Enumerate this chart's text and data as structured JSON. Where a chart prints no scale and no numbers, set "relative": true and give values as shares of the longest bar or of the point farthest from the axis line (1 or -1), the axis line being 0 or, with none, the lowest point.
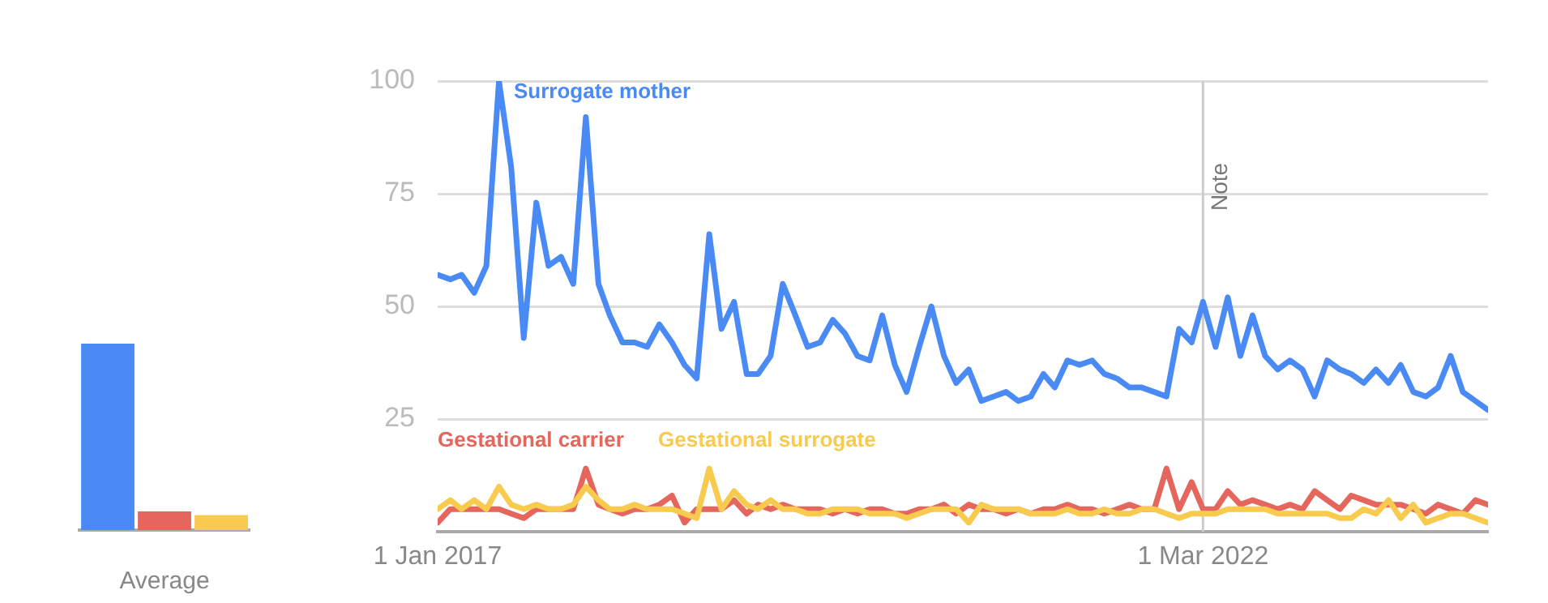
{
  "chart_data": [
    {
      "type": "bar",
      "relative": true,
      "categories": [
        null,
        null,
        null
      ],
      "xlabel": "Average",
      "legend": false,
      "values": [
        1,
        0.1,
        0.08
      ],
      "colors": [
        "#4a8af4",
        "#e4665c",
        "#f8cb4f"
      ]
    },
    {
      "type": "line",
      "legend": false,
      "grid": "y",
      "marker": "none",
      "line_style": "solid",
      "xlim": [
        "2017-01",
        "2024-02"
      ],
      "ylim": [
        0,
        100
      ],
      "yticks": [
        25,
        50,
        75,
        100
      ],
      "xticks": [
        {
          "value": "2017-01",
          "label": "1 Jan 2017"
        },
        {
          "value": "2022-03",
          "label": "1 Mar 2022"
        }
      ],
      "ref_lines": [
        {
          "axis": "x",
          "value": "2022-03",
          "label": "Note",
          "color": "#cccccc"
        }
      ],
      "x": [
        "2017-01",
        "2017-02",
        "2017-03",
        "2017-04",
        "2017-05",
        "2017-06",
        "2017-07",
        "2017-08",
        "2017-09",
        "2017-10",
        "2017-11",
        "2017-12",
        "2018-01",
        "2018-02",
        "2018-03",
        "2018-04",
        "2018-05",
        "2018-06",
        "2018-07",
        "2018-08",
        "2018-09",
        "2018-10",
        "2018-11",
        "2018-12",
        "2019-01",
        "2019-02",
        "2019-03",
        "2019-04",
        "2019-05",
        "2019-06",
        "2019-07",
        "2019-08",
        "2019-09",
        "2019-10",
        "2019-11",
        "2019-12",
        "2020-01",
        "2020-02",
        "2020-03",
        "2020-04",
        "2020-05",
        "2020-06",
        "2020-07",
        "2020-08",
        "2020-09",
        "2020-10",
        "2020-11",
        "2020-12",
        "2021-01",
        "2021-02",
        "2021-03",
        "2021-04",
        "2021-05",
        "2021-06",
        "2021-07",
        "2021-08",
        "2021-09",
        "2021-10",
        "2021-11",
        "2021-12",
        "2022-01",
        "2022-02",
        "2022-03",
        "2022-04",
        "2022-05",
        "2022-06",
        "2022-07",
        "2022-08",
        "2022-09",
        "2022-10",
        "2022-11",
        "2022-12",
        "2023-01",
        "2023-02",
        "2023-03",
        "2023-04",
        "2023-05",
        "2023-06",
        "2023-07",
        "2023-08",
        "2023-09",
        "2023-10",
        "2023-11",
        "2023-12",
        "2024-01",
        "2024-02"
      ],
      "series": [
        {
          "name": "Surrogate mother",
          "color": "#4a8af4",
          "values": [
            57,
            56,
            57,
            53,
            59,
            100,
            81,
            43,
            73,
            59,
            61,
            55,
            92,
            55,
            48,
            42,
            42,
            41,
            46,
            42,
            37,
            34,
            66,
            45,
            51,
            35,
            35,
            39,
            55,
            48,
            41,
            42,
            47,
            44,
            39,
            38,
            48,
            37,
            31,
            41,
            50,
            39,
            33,
            36,
            29,
            30,
            31,
            29,
            30,
            35,
            32,
            38,
            37,
            38,
            35,
            34,
            32,
            32,
            31,
            30,
            45,
            42,
            51,
            41,
            52,
            39,
            48,
            39,
            36,
            38,
            36,
            30,
            38,
            36,
            35,
            33,
            36,
            33,
            37,
            31,
            30,
            32,
            39,
            31,
            29,
            27
          ]
        },
        {
          "name": "Gestational carrier",
          "color": "#e4665c",
          "values": [
            2,
            5,
            5,
            5,
            5,
            5,
            4,
            3,
            5,
            5,
            5,
            5,
            14,
            6,
            5,
            4,
            5,
            5,
            6,
            8,
            2,
            5,
            5,
            5,
            7,
            4,
            6,
            5,
            6,
            5,
            5,
            5,
            4,
            5,
            4,
            5,
            5,
            4,
            4,
            5,
            5,
            6,
            4,
            6,
            5,
            5,
            4,
            5,
            4,
            5,
            5,
            6,
            5,
            5,
            4,
            5,
            6,
            5,
            5,
            14,
            5,
            11,
            5,
            5,
            9,
            6,
            7,
            6,
            5,
            6,
            5,
            9,
            7,
            5,
            8,
            7,
            6,
            6,
            6,
            5,
            4,
            6,
            5,
            4,
            7,
            6
          ]
        },
        {
          "name": "Gestational surrogate",
          "color": "#f8cb4f",
          "values": [
            5,
            7,
            5,
            7,
            5,
            10,
            6,
            5,
            6,
            5,
            5,
            6,
            10,
            7,
            5,
            5,
            6,
            5,
            5,
            5,
            4,
            3,
            14,
            5,
            9,
            6,
            5,
            7,
            5,
            5,
            4,
            4,
            5,
            5,
            5,
            4,
            4,
            4,
            3,
            4,
            5,
            5,
            5,
            2,
            6,
            5,
            5,
            5,
            4,
            4,
            4,
            5,
            4,
            4,
            5,
            4,
            4,
            5,
            5,
            4,
            3,
            4,
            4,
            4,
            5,
            5,
            5,
            5,
            4,
            4,
            4,
            4,
            4,
            3,
            3,
            5,
            4,
            7,
            3,
            6,
            2,
            3,
            4,
            4,
            3,
            2
          ]
        }
      ]
    }
  ]
}
